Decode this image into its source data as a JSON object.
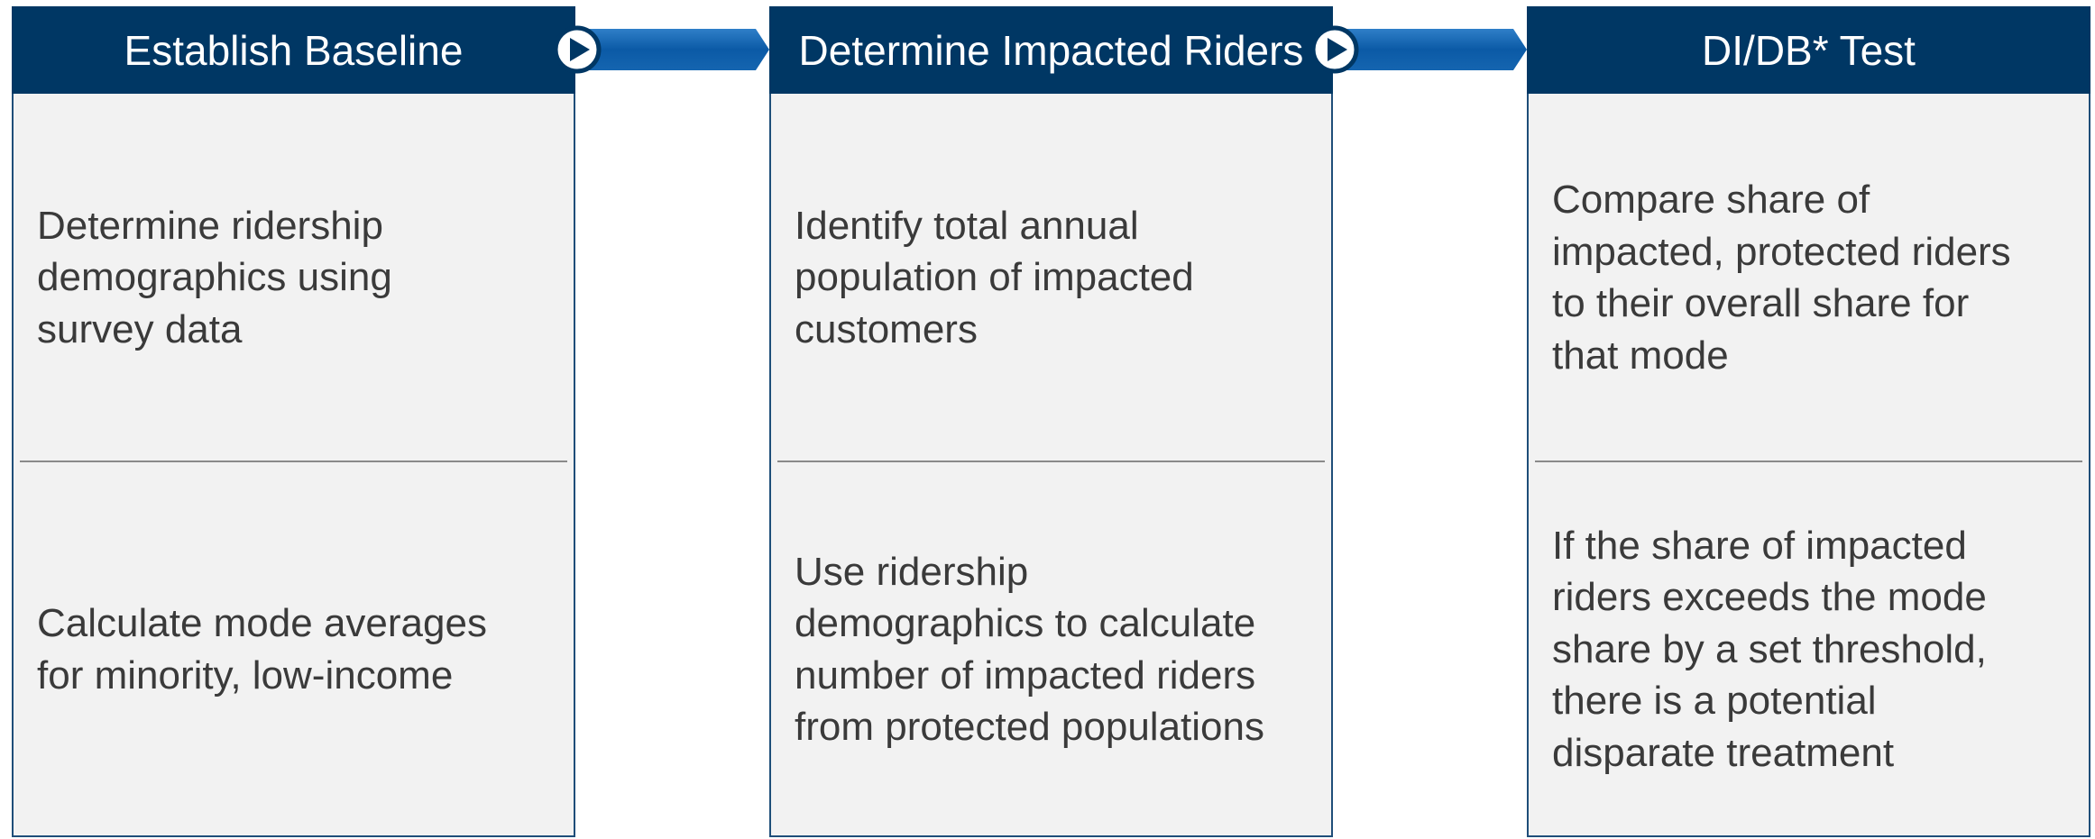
{
  "steps": [
    {
      "title": "Establish Baseline",
      "top": [
        "Determine ridership",
        "demographics using",
        "survey data"
      ],
      "bottom": [
        "Calculate mode averages",
        "for minority, low-income"
      ]
    },
    {
      "title": "Determine Impacted Riders",
      "top": [
        "Identify total annual",
        "population of impacted",
        "customers"
      ],
      "bottom": [
        "Use ridership",
        "demographics to calculate",
        "number of impacted riders",
        "from protected populations"
      ]
    },
    {
      "title": "DI/DB* Test",
      "top": [
        "Compare share of",
        "impacted, protected riders",
        "to their overall share for",
        "that mode"
      ],
      "bottom": [
        "If the share of impacted",
        "riders exceeds the mode",
        "share by a set threshold,",
        "there is a potential",
        "disparate treatment"
      ]
    }
  ]
}
